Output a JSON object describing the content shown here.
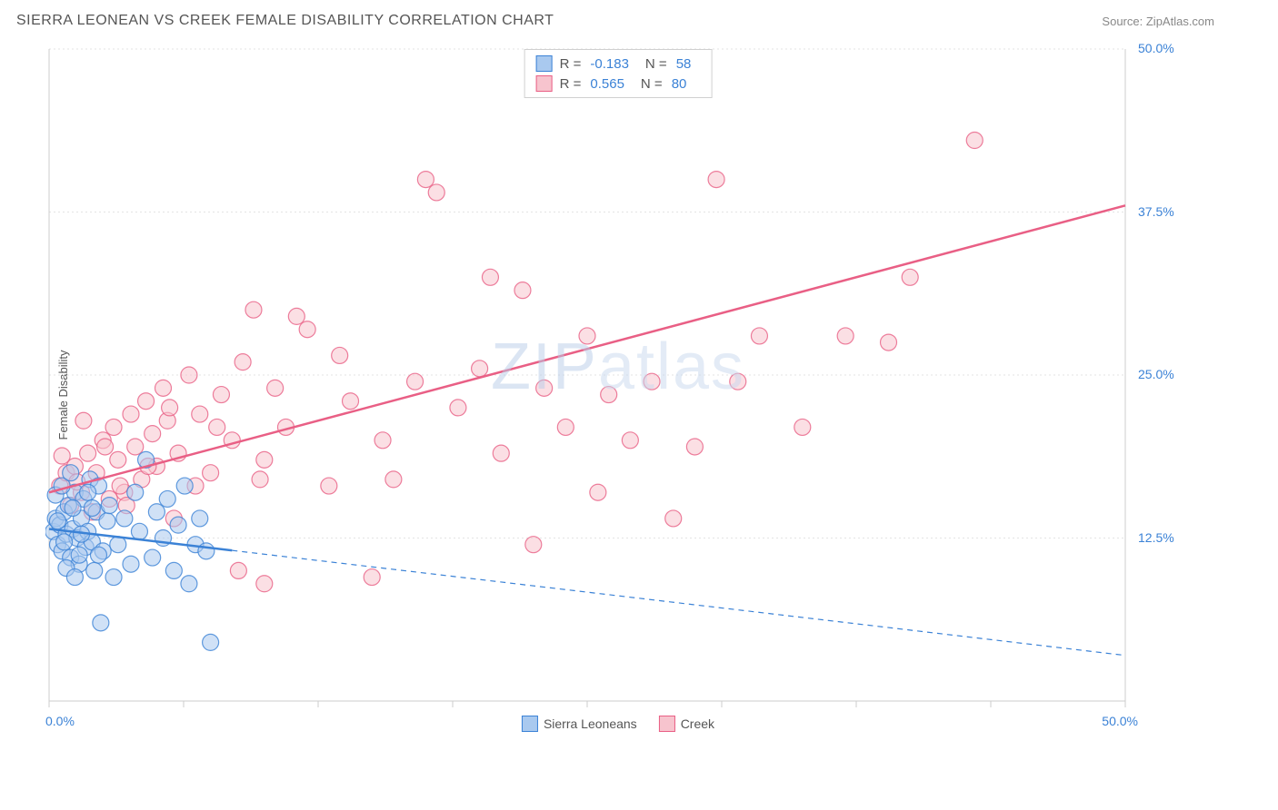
{
  "title": "SIERRA LEONEAN VS CREEK FEMALE DISABILITY CORRELATION CHART",
  "source_label": "Source:",
  "source_name": "ZipAtlas.com",
  "y_axis_label": "Female Disability",
  "watermark": {
    "part1": "ZIP",
    "part2": "atlas"
  },
  "chart": {
    "type": "scatter",
    "xlim": [
      0,
      50
    ],
    "ylim": [
      0,
      50
    ],
    "x_ticks": [
      0,
      6.25,
      12.5,
      18.75,
      25,
      31.25,
      37.5,
      43.75,
      50
    ],
    "y_ticks": [
      12.5,
      25,
      37.5,
      50
    ],
    "x_tick_labels": {
      "0": "0.0%",
      "50": "50.0%"
    },
    "y_tick_labels": {
      "12.5": "12.5%",
      "25": "25.0%",
      "37.5": "37.5%",
      "50": "50.0%"
    },
    "background_color": "#ffffff",
    "grid_color": "#e3e3e3",
    "axis_color": "#cccccc",
    "tick_label_color": "#3b82d6",
    "marker_radius": 9,
    "marker_stroke_width": 1.2,
    "trend_line_width": 2.5,
    "dash_pattern": "6,5"
  },
  "series": [
    {
      "name": "Sierra Leoneans",
      "fill_color": "#a9c9ef",
      "stroke_color": "#3b82d6",
      "fill_opacity": 0.55,
      "R": "-0.183",
      "N": "58",
      "trend": {
        "x1": 0,
        "y1": 13.2,
        "x2": 50,
        "y2": 3.5,
        "solid_until_x": 8.5
      },
      "points": [
        [
          0.2,
          13.0
        ],
        [
          0.3,
          14.0
        ],
        [
          0.4,
          12.0
        ],
        [
          0.5,
          13.5
        ],
        [
          0.6,
          11.5
        ],
        [
          0.7,
          14.5
        ],
        [
          0.8,
          12.8
        ],
        [
          0.9,
          15.0
        ],
        [
          1.0,
          11.0
        ],
        [
          1.1,
          13.2
        ],
        [
          1.2,
          16.0
        ],
        [
          1.3,
          12.5
        ],
        [
          1.4,
          10.5
        ],
        [
          1.5,
          14.0
        ],
        [
          1.6,
          15.5
        ],
        [
          1.7,
          11.8
        ],
        [
          1.8,
          13.0
        ],
        [
          1.9,
          17.0
        ],
        [
          2.0,
          12.2
        ],
        [
          2.1,
          10.0
        ],
        [
          2.2,
          14.5
        ],
        [
          2.3,
          16.5
        ],
        [
          2.4,
          6.0
        ],
        [
          2.5,
          11.5
        ],
        [
          2.7,
          13.8
        ],
        [
          2.8,
          15.0
        ],
        [
          3.0,
          9.5
        ],
        [
          3.2,
          12.0
        ],
        [
          3.5,
          14.0
        ],
        [
          3.8,
          10.5
        ],
        [
          4.0,
          16.0
        ],
        [
          4.2,
          13.0
        ],
        [
          4.5,
          18.5
        ],
        [
          4.8,
          11.0
        ],
        [
          5.0,
          14.5
        ],
        [
          5.3,
          12.5
        ],
        [
          5.5,
          15.5
        ],
        [
          5.8,
          10.0
        ],
        [
          6.0,
          13.5
        ],
        [
          6.3,
          16.5
        ],
        [
          6.5,
          9.0
        ],
        [
          6.8,
          12.0
        ],
        [
          7.0,
          14.0
        ],
        [
          7.3,
          11.5
        ],
        [
          7.5,
          4.5
        ],
        [
          0.3,
          15.8
        ],
        [
          0.6,
          16.5
        ],
        [
          0.8,
          10.2
        ],
        [
          1.0,
          17.5
        ],
        [
          1.2,
          9.5
        ],
        [
          1.5,
          12.8
        ],
        [
          1.8,
          16.0
        ],
        [
          2.0,
          14.8
        ],
        [
          2.3,
          11.2
        ],
        [
          0.4,
          13.8
        ],
        [
          0.7,
          12.2
        ],
        [
          1.1,
          14.8
        ],
        [
          1.4,
          11.2
        ]
      ]
    },
    {
      "name": "Creek",
      "fill_color": "#f7c4ce",
      "stroke_color": "#e95f85",
      "fill_opacity": 0.55,
      "R": "0.565",
      "N": "80",
      "trend": {
        "x1": 0,
        "y1": 16.0,
        "x2": 50,
        "y2": 38.0,
        "solid_until_x": 50
      },
      "points": [
        [
          0.5,
          16.5
        ],
        [
          0.8,
          17.5
        ],
        [
          1.0,
          15.0
        ],
        [
          1.2,
          18.0
        ],
        [
          1.5,
          16.0
        ],
        [
          1.8,
          19.0
        ],
        [
          2.0,
          14.5
        ],
        [
          2.2,
          17.5
        ],
        [
          2.5,
          20.0
        ],
        [
          2.8,
          15.5
        ],
        [
          3.0,
          21.0
        ],
        [
          3.2,
          18.5
        ],
        [
          3.5,
          16.0
        ],
        [
          3.8,
          22.0
        ],
        [
          4.0,
          19.5
        ],
        [
          4.3,
          17.0
        ],
        [
          4.5,
          23.0
        ],
        [
          4.8,
          20.5
        ],
        [
          5.0,
          18.0
        ],
        [
          5.3,
          24.0
        ],
        [
          5.5,
          21.5
        ],
        [
          5.8,
          14.0
        ],
        [
          6.0,
          19.0
        ],
        [
          6.5,
          25.0
        ],
        [
          7.0,
          22.0
        ],
        [
          7.5,
          17.5
        ],
        [
          8.0,
          23.5
        ],
        [
          8.5,
          20.0
        ],
        [
          9.0,
          26.0
        ],
        [
          9.5,
          30.0
        ],
        [
          10.0,
          18.5
        ],
        [
          10.5,
          24.0
        ],
        [
          11.0,
          21.0
        ],
        [
          11.5,
          29.5
        ],
        [
          12.0,
          28.5
        ],
        [
          13.0,
          16.5
        ],
        [
          13.5,
          26.5
        ],
        [
          14.0,
          23.0
        ],
        [
          15.0,
          9.5
        ],
        [
          15.5,
          20.0
        ],
        [
          16.0,
          17.0
        ],
        [
          17.0,
          24.5
        ],
        [
          17.5,
          40.0
        ],
        [
          18.0,
          39.0
        ],
        [
          19.0,
          22.5
        ],
        [
          20.0,
          25.5
        ],
        [
          20.5,
          32.5
        ],
        [
          21.0,
          19.0
        ],
        [
          22.0,
          31.5
        ],
        [
          22.5,
          12.0
        ],
        [
          23.0,
          24.0
        ],
        [
          24.0,
          21.0
        ],
        [
          25.0,
          28.0
        ],
        [
          25.5,
          16.0
        ],
        [
          26.0,
          23.5
        ],
        [
          27.0,
          20.0
        ],
        [
          28.0,
          24.5
        ],
        [
          29.0,
          14.0
        ],
        [
          30.0,
          19.5
        ],
        [
          31.0,
          40.0
        ],
        [
          32.0,
          24.5
        ],
        [
          33.0,
          28.0
        ],
        [
          35.0,
          21.0
        ],
        [
          37.0,
          28.0
        ],
        [
          39.0,
          27.5
        ],
        [
          40.0,
          32.5
        ],
        [
          43.0,
          43.0
        ],
        [
          0.6,
          18.8
        ],
        [
          1.3,
          16.8
        ],
        [
          2.6,
          19.5
        ],
        [
          3.6,
          15.0
        ],
        [
          4.6,
          18.0
        ],
        [
          5.6,
          22.5
        ],
        [
          6.8,
          16.5
        ],
        [
          7.8,
          21.0
        ],
        [
          8.8,
          10.0
        ],
        [
          9.8,
          17.0
        ],
        [
          1.6,
          21.5
        ],
        [
          3.3,
          16.5
        ],
        [
          10.0,
          9.0
        ]
      ]
    }
  ],
  "legend_top": {
    "R_label": "R =",
    "N_label": "N ="
  },
  "legend_bottom": [
    {
      "swatch_fill": "#a9c9ef",
      "swatch_stroke": "#3b82d6",
      "label": "Sierra Leoneans"
    },
    {
      "swatch_fill": "#f7c4ce",
      "swatch_stroke": "#e95f85",
      "label": "Creek"
    }
  ]
}
